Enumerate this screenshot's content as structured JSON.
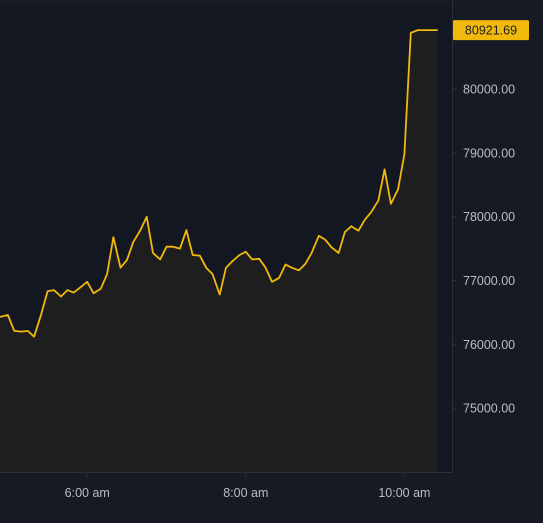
{
  "chart_data": {
    "type": "area",
    "title": "",
    "xlabel": "",
    "ylabel": "",
    "ylim": [
      74000,
      81300
    ],
    "xlim_hours": [
      4.9,
      10.6
    ],
    "x_ticks": [
      {
        "hour": 6,
        "label": "6:00 am"
      },
      {
        "hour": 8,
        "label": "8:00 am"
      },
      {
        "hour": 10,
        "label": "10:00 am"
      }
    ],
    "y_ticks": [
      {
        "value": 75000,
        "label": "75000.00"
      },
      {
        "value": 76000,
        "label": "76000.00"
      },
      {
        "value": 77000,
        "label": "77000.00"
      },
      {
        "value": 78000,
        "label": "78000.00"
      },
      {
        "value": 79000,
        "label": "79000.00"
      },
      {
        "value": 80000,
        "label": "80000.00"
      }
    ],
    "last_price": {
      "value": 80921.69,
      "label": "80921.69"
    },
    "grid": false,
    "colors": {
      "background": "#161a25",
      "plot_background": "#131722",
      "line": "#f0b90b",
      "fill": "#1f1e1e",
      "axis_text": "#b7bdc6",
      "axis_line": "#2b2f38",
      "price_badge": "#f0b90b",
      "price_badge_text": "#1e2026"
    },
    "series": [
      {
        "x": [
          4.9,
          5.0,
          5.08,
          5.17,
          5.25,
          5.33,
          5.42,
          5.5,
          5.58,
          5.67,
          5.75,
          5.83,
          5.92,
          6.0,
          6.08,
          6.17,
          6.25,
          6.33,
          6.42,
          6.5,
          6.58,
          6.67,
          6.75,
          6.83,
          6.92,
          7.0,
          7.08,
          7.17,
          7.25,
          7.33,
          7.42,
          7.5,
          7.58,
          7.67,
          7.75,
          7.83,
          7.92,
          8.0,
          8.08,
          8.17,
          8.25,
          8.33,
          8.42,
          8.5,
          8.58,
          8.67,
          8.75,
          8.83,
          8.92,
          9.0,
          9.08,
          9.17,
          9.25,
          9.33,
          9.42,
          9.5,
          9.58,
          9.67,
          9.75,
          9.83,
          9.92,
          10.0,
          10.08,
          10.17,
          10.25,
          10.33,
          10.42
        ],
        "y": [
          76430,
          76460,
          76210,
          76200,
          76210,
          76120,
          76470,
          76830,
          76850,
          76750,
          76850,
          76810,
          76900,
          76980,
          76800,
          76870,
          77100,
          77680,
          77200,
          77320,
          77600,
          77790,
          78000,
          77430,
          77330,
          77530,
          77530,
          77500,
          77790,
          77400,
          77390,
          77200,
          77100,
          76780,
          77200,
          77300,
          77400,
          77450,
          77330,
          77340,
          77200,
          76980,
          77040,
          77250,
          77200,
          77160,
          77260,
          77430,
          77700,
          77640,
          77520,
          77430,
          77760,
          77850,
          77780,
          77950,
          78070,
          78250,
          78740,
          78200,
          78430,
          78980,
          80880,
          80921.69,
          80921.69,
          80921.69,
          80921.69
        ]
      }
    ]
  }
}
